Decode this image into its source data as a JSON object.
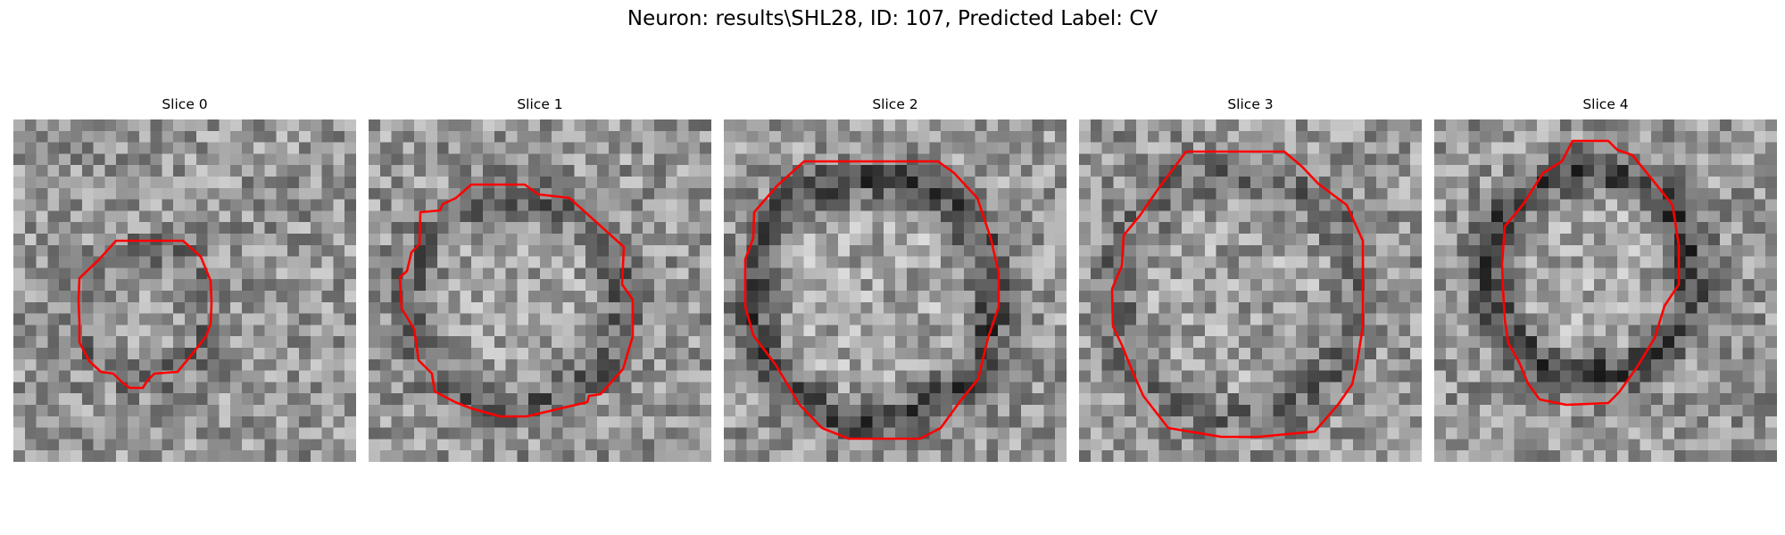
{
  "figure": {
    "title": "Neuron: results\\SHL28, ID: 107, Predicted Label: CV"
  },
  "panels": [
    {
      "title": "Slice 0",
      "contour_color": "#ff0000",
      "ring": 0.35
    },
    {
      "title": "Slice 1",
      "contour_color": "#ff0000",
      "ring": 0.55
    },
    {
      "title": "Slice 2",
      "contour_color": "#ff0000",
      "ring": 0.8
    },
    {
      "title": "Slice 3",
      "contour_color": "#ff0000",
      "ring": 0.45
    },
    {
      "title": "Slice 4",
      "contour_color": "#ff0000",
      "ring": 0.85
    }
  ]
}
